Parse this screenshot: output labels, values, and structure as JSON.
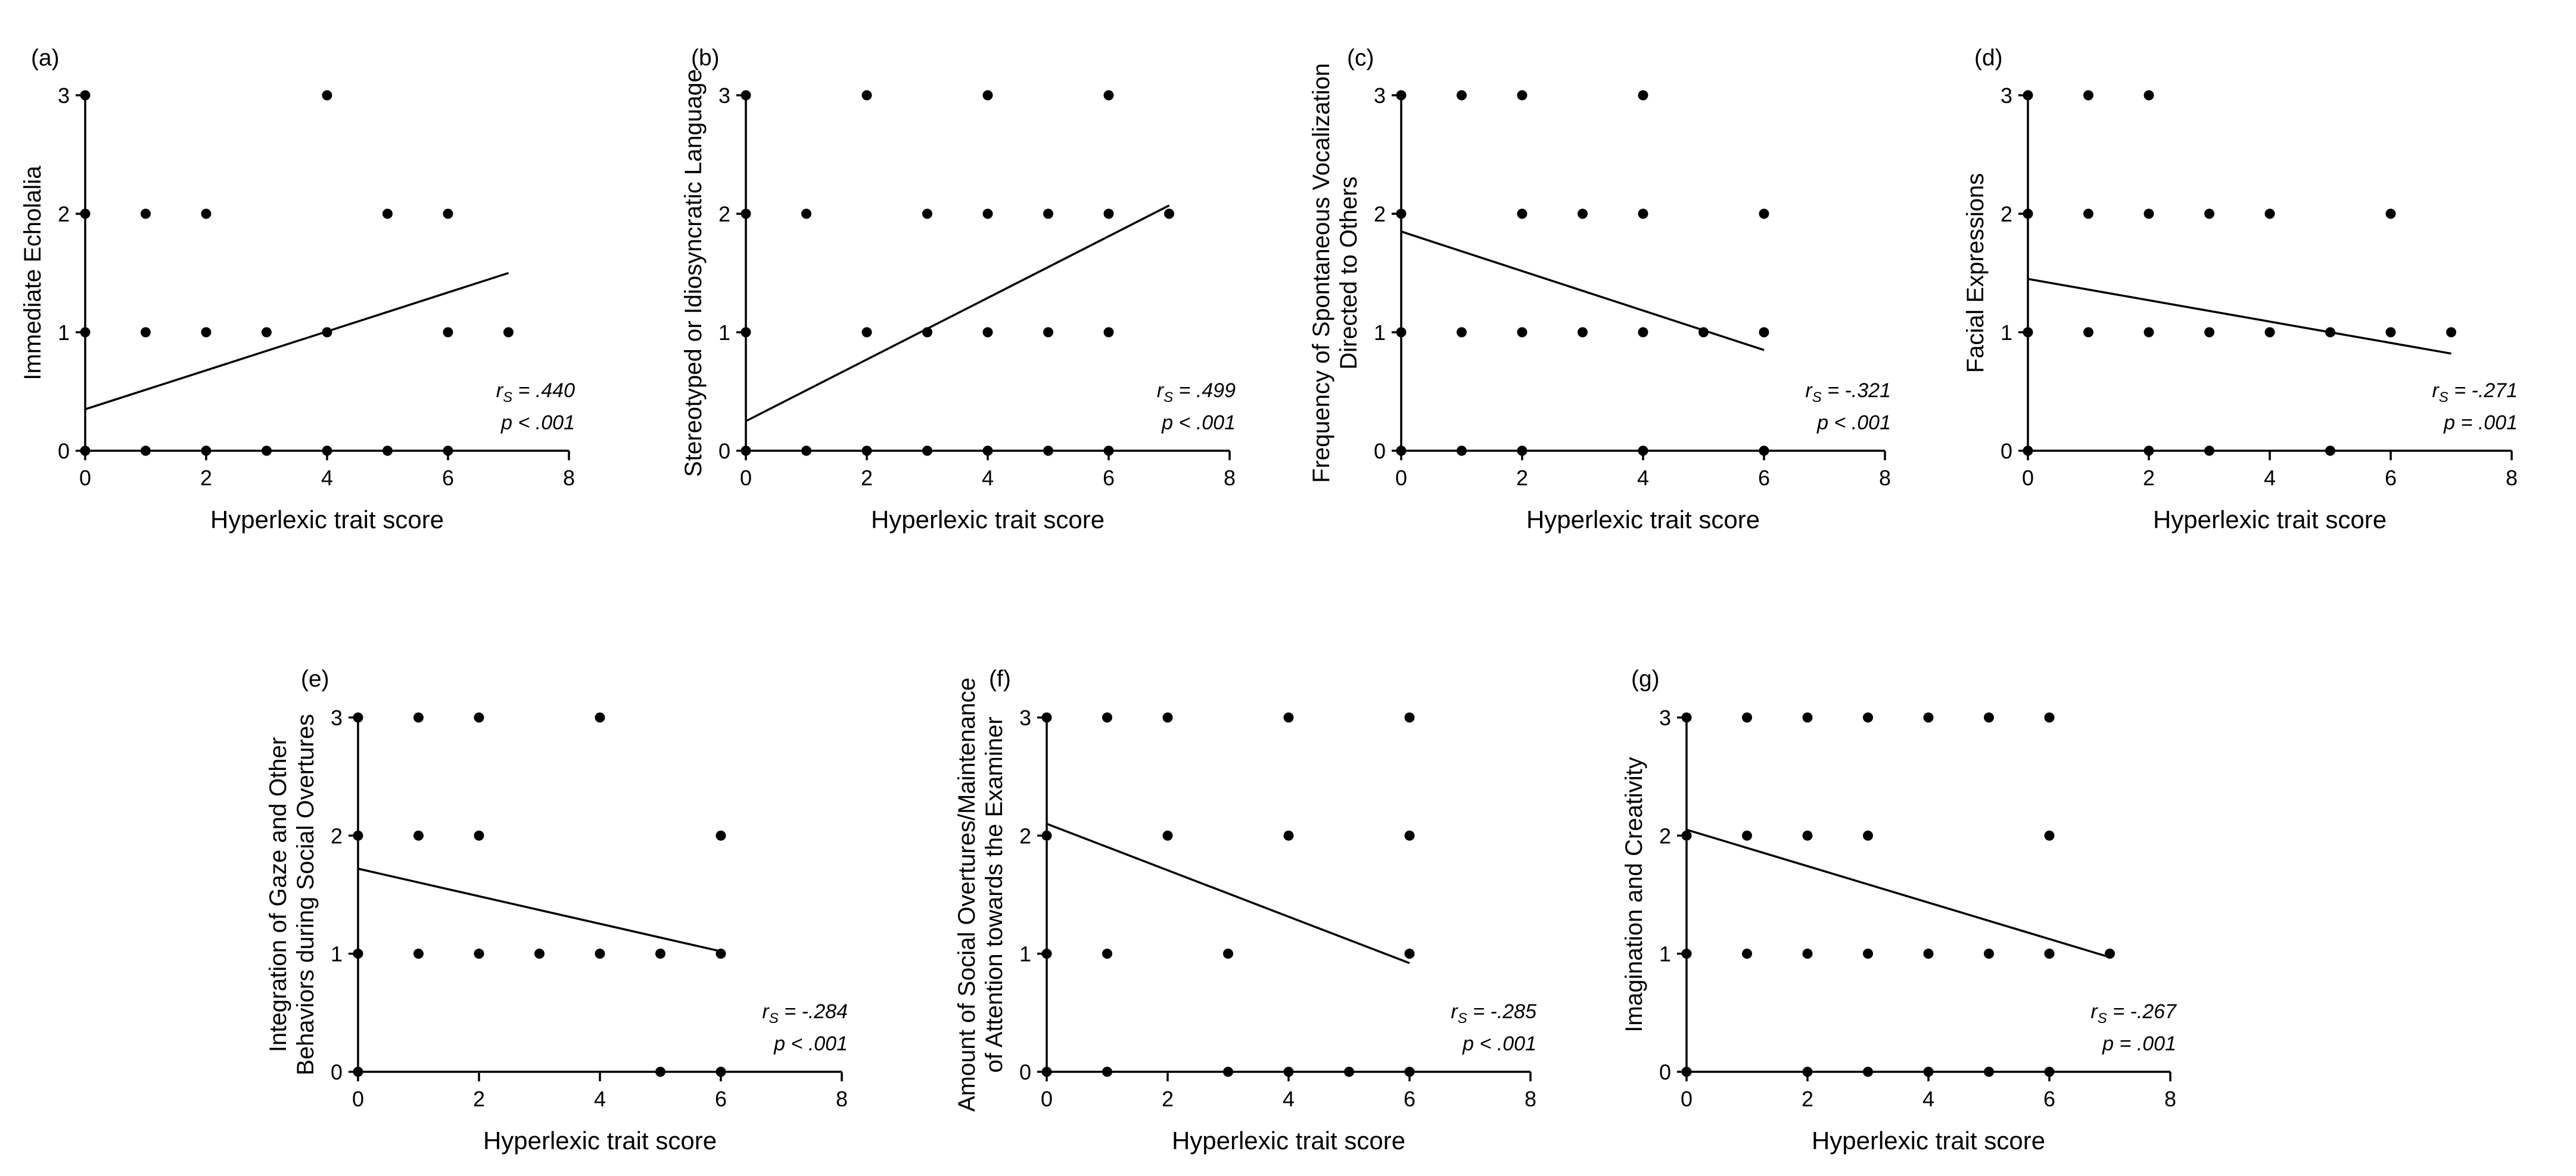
{
  "figure": {
    "x_axis_label": "Hyperlexic trait score"
  },
  "chart_data": [
    {
      "type": "scatter",
      "panel": "(a)",
      "ylabel": "Immediate Echolalia",
      "xlabel": "Hyperlexic trait score",
      "xlim": [
        0,
        8
      ],
      "ylim": [
        0,
        3
      ],
      "x_ticks": [
        "0",
        "2",
        "4",
        "6",
        "8"
      ],
      "y_ticks": [
        "0",
        "1",
        "2",
        "3"
      ],
      "points": [
        [
          0,
          0
        ],
        [
          1,
          0
        ],
        [
          2,
          0
        ],
        [
          3,
          0
        ],
        [
          4,
          0
        ],
        [
          5,
          0
        ],
        [
          6,
          0
        ],
        [
          0,
          1
        ],
        [
          1,
          1
        ],
        [
          2,
          1
        ],
        [
          3,
          1
        ],
        [
          4,
          1
        ],
        [
          6,
          1
        ],
        [
          7,
          1
        ],
        [
          0,
          2
        ],
        [
          1,
          2
        ],
        [
          2,
          2
        ],
        [
          5,
          2
        ],
        [
          6,
          2
        ],
        [
          0,
          3
        ],
        [
          4,
          3
        ]
      ],
      "fit": {
        "x0": 0,
        "y0": 0.35,
        "x1": 7,
        "y1": 1.5
      },
      "stat_r": "= .440",
      "stat_p": "p < .001"
    },
    {
      "type": "scatter",
      "panel": "(b)",
      "ylabel": "Stereotyped or Idiosyncratic Language",
      "xlabel": "Hyperlexic trait score",
      "xlim": [
        0,
        8
      ],
      "ylim": [
        0,
        3
      ],
      "x_ticks": [
        "0",
        "2",
        "4",
        "6",
        "8"
      ],
      "y_ticks": [
        "0",
        "1",
        "2",
        "3"
      ],
      "points": [
        [
          0,
          0
        ],
        [
          1,
          0
        ],
        [
          2,
          0
        ],
        [
          3,
          0
        ],
        [
          4,
          0
        ],
        [
          5,
          0
        ],
        [
          6,
          0
        ],
        [
          0,
          1
        ],
        [
          2,
          1
        ],
        [
          3,
          1
        ],
        [
          4,
          1
        ],
        [
          5,
          1
        ],
        [
          6,
          1
        ],
        [
          0,
          2
        ],
        [
          1,
          2
        ],
        [
          3,
          2
        ],
        [
          4,
          2
        ],
        [
          5,
          2
        ],
        [
          6,
          2
        ],
        [
          7,
          2
        ],
        [
          0,
          3
        ],
        [
          2,
          3
        ],
        [
          4,
          3
        ],
        [
          6,
          3
        ]
      ],
      "fit": {
        "x0": 0,
        "y0": 0.25,
        "x1": 7,
        "y1": 2.07
      },
      "stat_r": "= .499",
      "stat_p": "p < .001"
    },
    {
      "type": "scatter",
      "panel": "(c)",
      "ylabel": "Frequency of Spontaneous Vocalization Directed to Others",
      "xlabel": "Hyperlexic trait score",
      "xlim": [
        0,
        8
      ],
      "ylim": [
        0,
        3
      ],
      "x_ticks": [
        "0",
        "2",
        "4",
        "6",
        "8"
      ],
      "y_ticks": [
        "0",
        "1",
        "2",
        "3"
      ],
      "points": [
        [
          0,
          0
        ],
        [
          1,
          0
        ],
        [
          2,
          0
        ],
        [
          4,
          0
        ],
        [
          6,
          0
        ],
        [
          0,
          1
        ],
        [
          1,
          1
        ],
        [
          2,
          1
        ],
        [
          3,
          1
        ],
        [
          4,
          1
        ],
        [
          5,
          1
        ],
        [
          6,
          1
        ],
        [
          0,
          2
        ],
        [
          2,
          2
        ],
        [
          3,
          2
        ],
        [
          4,
          2
        ],
        [
          6,
          2
        ],
        [
          0,
          3
        ],
        [
          1,
          3
        ],
        [
          2,
          3
        ],
        [
          4,
          3
        ]
      ],
      "fit": {
        "x0": 0,
        "y0": 1.85,
        "x1": 6,
        "y1": 0.85
      },
      "stat_r": "= -.321",
      "stat_p": "p < .001"
    },
    {
      "type": "scatter",
      "panel": "(d)",
      "ylabel": "Facial Expressions",
      "xlabel": "Hyperlexic trait score",
      "xlim": [
        0,
        8
      ],
      "ylim": [
        0,
        3
      ],
      "x_ticks": [
        "0",
        "2",
        "4",
        "6",
        "8"
      ],
      "y_ticks": [
        "0",
        "1",
        "2",
        "3"
      ],
      "points": [
        [
          0,
          0
        ],
        [
          2,
          0
        ],
        [
          3,
          0
        ],
        [
          5,
          0
        ],
        [
          0,
          1
        ],
        [
          1,
          1
        ],
        [
          2,
          1
        ],
        [
          3,
          1
        ],
        [
          4,
          1
        ],
        [
          5,
          1
        ],
        [
          6,
          1
        ],
        [
          7,
          1
        ],
        [
          0,
          2
        ],
        [
          1,
          2
        ],
        [
          2,
          2
        ],
        [
          3,
          2
        ],
        [
          4,
          2
        ],
        [
          6,
          2
        ],
        [
          0,
          3
        ],
        [
          1,
          3
        ],
        [
          2,
          3
        ]
      ],
      "fit": {
        "x0": 0,
        "y0": 1.45,
        "x1": 7,
        "y1": 0.82
      },
      "stat_r": "= -.271",
      "stat_p": "p = .001"
    },
    {
      "type": "scatter",
      "panel": "(e)",
      "ylabel": "Integration of Gaze and Other Behaviors during Social Overtures",
      "xlabel": "Hyperlexic trait score",
      "xlim": [
        0,
        8
      ],
      "ylim": [
        0,
        3
      ],
      "x_ticks": [
        "0",
        "2",
        "4",
        "6",
        "8"
      ],
      "y_ticks": [
        "0",
        "1",
        "2",
        "3"
      ],
      "points": [
        [
          0,
          0
        ],
        [
          5,
          0
        ],
        [
          6,
          0
        ],
        [
          0,
          1
        ],
        [
          1,
          1
        ],
        [
          2,
          1
        ],
        [
          3,
          1
        ],
        [
          4,
          1
        ],
        [
          5,
          1
        ],
        [
          6,
          1
        ],
        [
          0,
          2
        ],
        [
          1,
          2
        ],
        [
          2,
          2
        ],
        [
          6,
          2
        ],
        [
          0,
          3
        ],
        [
          1,
          3
        ],
        [
          2,
          3
        ],
        [
          4,
          3
        ]
      ],
      "fit": {
        "x0": 0,
        "y0": 1.72,
        "x1": 6,
        "y1": 1.02
      },
      "stat_r": "= -.284",
      "stat_p": "p < .001"
    },
    {
      "type": "scatter",
      "panel": "(f)",
      "ylabel": "Amount of Social Overtures/Maintenance of Attention towards the Examiner",
      "xlabel": "Hyperlexic trait score",
      "xlim": [
        0,
        8
      ],
      "ylim": [
        0,
        3
      ],
      "x_ticks": [
        "0",
        "2",
        "4",
        "6",
        "8"
      ],
      "y_ticks": [
        "0",
        "1",
        "2",
        "3"
      ],
      "points": [
        [
          0,
          0
        ],
        [
          1,
          0
        ],
        [
          3,
          0
        ],
        [
          4,
          0
        ],
        [
          5,
          0
        ],
        [
          6,
          0
        ],
        [
          0,
          1
        ],
        [
          1,
          1
        ],
        [
          3,
          1
        ],
        [
          6,
          1
        ],
        [
          0,
          2
        ],
        [
          2,
          2
        ],
        [
          4,
          2
        ],
        [
          6,
          2
        ],
        [
          0,
          3
        ],
        [
          1,
          3
        ],
        [
          2,
          3
        ],
        [
          4,
          3
        ],
        [
          6,
          3
        ]
      ],
      "fit": {
        "x0": 0,
        "y0": 2.1,
        "x1": 6,
        "y1": 0.92
      },
      "stat_r": "= -.285",
      "stat_p": "p < .001"
    },
    {
      "type": "scatter",
      "panel": "(g)",
      "ylabel": "Imagination and Creativity",
      "xlabel": "Hyperlexic trait score",
      "xlim": [
        0,
        8
      ],
      "ylim": [
        0,
        3
      ],
      "x_ticks": [
        "0",
        "2",
        "4",
        "6",
        "8"
      ],
      "y_ticks": [
        "0",
        "1",
        "2",
        "3"
      ],
      "points": [
        [
          0,
          0
        ],
        [
          2,
          0
        ],
        [
          3,
          0
        ],
        [
          4,
          0
        ],
        [
          5,
          0
        ],
        [
          6,
          0
        ],
        [
          0,
          1
        ],
        [
          1,
          1
        ],
        [
          2,
          1
        ],
        [
          3,
          1
        ],
        [
          4,
          1
        ],
        [
          5,
          1
        ],
        [
          6,
          1
        ],
        [
          7,
          1
        ],
        [
          0,
          2
        ],
        [
          1,
          2
        ],
        [
          2,
          2
        ],
        [
          3,
          2
        ],
        [
          6,
          2
        ],
        [
          0,
          3
        ],
        [
          1,
          3
        ],
        [
          2,
          3
        ],
        [
          3,
          3
        ],
        [
          4,
          3
        ],
        [
          5,
          3
        ],
        [
          6,
          3
        ]
      ],
      "fit": {
        "x0": 0,
        "y0": 2.05,
        "x1": 7,
        "y1": 0.97
      },
      "stat_r": "= -.267",
      "stat_p": "p = .001"
    }
  ]
}
